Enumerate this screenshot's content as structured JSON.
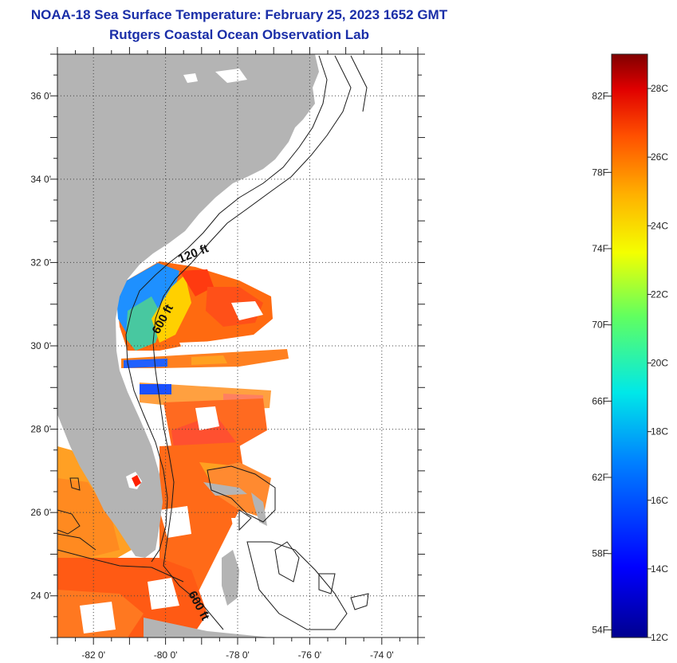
{
  "header": {
    "title": "NOAA-18 Sea Surface Temperature:  February 25, 2023 1652 GMT",
    "subtitle": "Rutgers Coastal Ocean Observation Lab"
  },
  "map": {
    "lat_range": [
      23,
      37
    ],
    "lon_range": [
      -83,
      -73
    ],
    "lat_ticks": [
      {
        "value": 24,
        "label": "24 0'"
      },
      {
        "value": 26,
        "label": "26 0'"
      },
      {
        "value": 28,
        "label": "28 0'"
      },
      {
        "value": 30,
        "label": "30 0'"
      },
      {
        "value": 32,
        "label": "32 0'"
      },
      {
        "value": 34,
        "label": "34 0'"
      },
      {
        "value": 36,
        "label": "36 0'"
      }
    ],
    "lon_ticks": [
      {
        "value": -82,
        "label": "-82 0'"
      },
      {
        "value": -80,
        "label": "-80 0'"
      },
      {
        "value": -78,
        "label": "-78 0'"
      },
      {
        "value": -76,
        "label": "-76 0'"
      },
      {
        "value": -74,
        "label": "-74 0'"
      }
    ],
    "depth_labels": {
      "shelf_120": "120 ft",
      "slope_600_north": "600 ft",
      "slope_600_south": "600 ft"
    },
    "land_color": "#b4b4b4",
    "water_no_data_color": "#ffffff"
  },
  "colorbar": {
    "range_c": [
      12,
      29
    ],
    "fahrenheit_labels": [
      "82F",
      "78F",
      "74F",
      "70F",
      "66F",
      "62F",
      "58F",
      "54F"
    ],
    "celsius_labels": [
      "28C",
      "26C",
      "24C",
      "22C",
      "20C",
      "18C",
      "16C",
      "14C",
      "12C"
    ]
  }
}
